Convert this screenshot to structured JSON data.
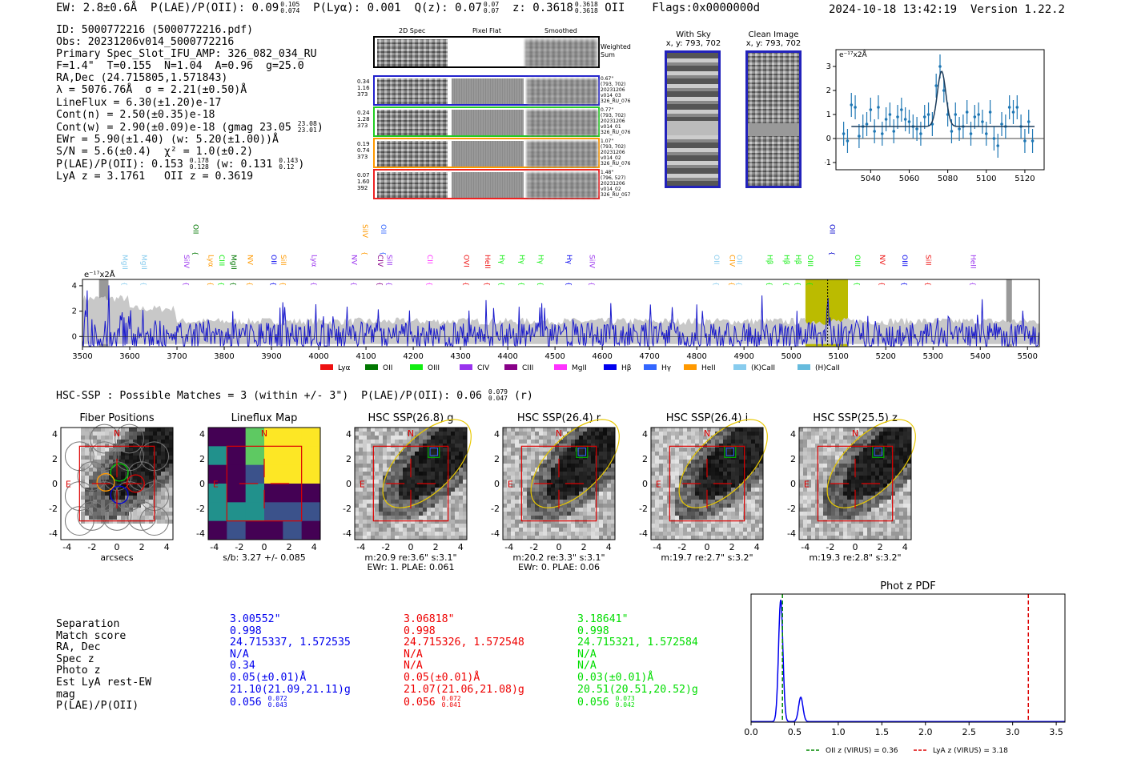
{
  "header": {
    "ew": "EW: 2.8±0.6Å",
    "plae_label": "P(LAE)/P(OII):",
    "plae_val": "0.09",
    "plae_sup": "0.105",
    "plae_sub": "0.074",
    "plya": "P(Lyα): 0.001",
    "qz_label": "Q(z): 0.07",
    "qz_sup": "0.07",
    "qz_sub": "0.07",
    "z_label": "z: 0.3618",
    "z_sup": "0.3618",
    "z_sub": "0.3618",
    "z_line": "OII",
    "flags": "Flags:0x0000000d",
    "datetime": "2024-10-18 13:42:19",
    "version": "Version 1.22.2"
  },
  "info": {
    "id": "ID: 5000772216 (5000772216.pdf)",
    "obs": "Obs: 20231206v014_5000772216",
    "primary": "Primary Spec_Slot_IFU_AMP: 326_082_034_RU",
    "params": "F=1.4\"  T=0.155  N=1.04  A=0.96  g=25.0",
    "radec": "RA,Dec (24.715805,1.571843)",
    "lambda": "λ = 5076.76Å  σ = 2.21(±0.50)Å",
    "lineflux": "LineFlux = 6.30(±1.20)e-17",
    "contn": "Cont(n) = 2.50(±0.35)e-18",
    "contw": "Cont(w) = 2.90(±0.09)e-18 (gmag 23.05",
    "contw_sup": "23.08",
    "contw_sub": "23.01",
    "contw_close": ")",
    "ewr": "EWr = 5.90(±1.40) (w: 5.20(±1.00))Å",
    "sn": "S/N = 5.6(±0.4)  χ² = 1.0(±0.2)",
    "plae": "P(LAE)/P(OII): 0.153",
    "plae_sup": "0.178",
    "plae_sub": "0.128",
    "plae_w": "(w: 0.131",
    "plae_w_sup": "0.143",
    "plae_w_sub": "0.12",
    "plae_w_close": ")",
    "lyaz": "LyA z = 3.1761   OII z = 0.3619"
  },
  "cutouts": {
    "col_2d": "2D Spec",
    "col_flat": "Pixel Flat",
    "col_smooth": "Smoothed",
    "weighted_sum": "Weighted Sum",
    "rows": [
      {
        "a": "0.34",
        "b": "1.16",
        "c": "373",
        "s1": "0.67\"",
        "s2": "(793, 702)",
        "s3": "20231206",
        "s4": "v014_03",
        "s5": "326_RU_076",
        "color": "#2222cc"
      },
      {
        "a": "0.24",
        "b": "1.28",
        "c": "373",
        "s1": "0.77\"",
        "s2": "(793, 702)",
        "s3": "20231206",
        "s4": "v014_01",
        "s5": "326_RU_076",
        "color": "#22cc22"
      },
      {
        "a": "0.19",
        "b": "0.74",
        "c": "373",
        "s1": "1.07\"",
        "s2": "(793, 702)",
        "s3": "20231206",
        "s4": "v014_02",
        "s5": "326_RU_076",
        "color": "#ff9900"
      },
      {
        "a": "0.07",
        "b": "1.60",
        "c": "392",
        "s1": "1.48\"",
        "s2": "(796, 527)",
        "s3": "20231206",
        "s4": "v014_02",
        "s5": "326_RU_057",
        "color": "#ee2222"
      }
    ],
    "with_sky_title": "With Sky",
    "with_sky_xy": "x, y: 793, 702",
    "clean_title": "Clean Image",
    "clean_xy": "x, y: 793, 702"
  },
  "zoom_plot": {
    "units": "e⁻¹⁷x2Å"
  },
  "spectrum": {
    "units": "e⁻¹⁷x2Å",
    "legend_colors": [
      "#ee1111",
      "#007700",
      "#11ee11",
      "#9933ee",
      "#880088",
      "#ff33ff",
      "#0000ee",
      "#3366ff",
      "#ff9900",
      "#88ccee",
      "#66bbdd"
    ]
  },
  "hsc": {
    "title": "HSC-SSP : Possible Matches = 3 (within +/- 3\")  P(LAE)/P(OII): 0.06",
    "title_sup": "0.079",
    "title_sub": "0.047",
    "title_tail": "(r)",
    "xlabel": "arcsecs",
    "sb": "s/b: 3.27 +/- 0.085",
    "N": "N",
    "E": "E"
  },
  "matches": {
    "labels": [
      "Separation",
      "Match score",
      "RA, Dec",
      "Spec z",
      "Photo z",
      "Est LyA rest-EW",
      "mag",
      "P(LAE)/P(OII)"
    ],
    "cols": [
      {
        "color": "#0000ee",
        "sep": "3.00552\"",
        "score": "0.998",
        "radec": "24.715337, 1.572535",
        "specz": "N/A",
        "photoz": "0.34",
        "ew": "0.05(±0.01)Å",
        "mag": "21.10(21.09,21.11)g",
        "plae": "0.056",
        "plae_sup": "0.072",
        "plae_sub": "0.043"
      },
      {
        "color": "#ee0000",
        "sep": "3.06818\"",
        "score": "0.998",
        "radec": "24.715326, 1.572548",
        "specz": "N/A",
        "photoz": "N/A",
        "ew": "0.05(±0.01)Å",
        "mag": "21.07(21.06,21.08)g",
        "plae": "0.056",
        "plae_sup": "0.072",
        "plae_sub": "0.041"
      },
      {
        "color": "#00dd00",
        "sep": "3.18641\"",
        "score": "0.998",
        "radec": "24.715321, 1.572584",
        "specz": "N/A",
        "photoz": "N/A",
        "ew": "0.03(±0.01)Å",
        "mag": "20.51(20.51,20.52)g",
        "plae": "0.056",
        "plae_sup": "0.073",
        "plae_sub": "0.042"
      }
    ]
  },
  "chart_data": [
    {
      "type": "line",
      "title": "",
      "ylabel": "e⁻¹⁷x2Å",
      "xlabel": "",
      "xlim": [
        3500,
        5525
      ],
      "ylim": [
        -0.8,
        4.5
      ],
      "x_ticks": [
        3500,
        3600,
        3700,
        3800,
        3900,
        4000,
        4100,
        4200,
        4300,
        4400,
        4500,
        4600,
        4700,
        4800,
        4900,
        5000,
        5100,
        5200,
        5300,
        5400,
        5500
      ],
      "y_ticks": [
        0,
        2,
        4
      ],
      "highlight_range": [
        5030,
        5120
      ],
      "marker_x": 5077,
      "lines_top": [
        {
          "label": "OII",
          "x": 3730,
          "color": "#007700"
        },
        {
          "label": "SiIV",
          "x": 4088,
          "color": "#ff9900"
        },
        {
          "label": "OII",
          "x": 4127,
          "color": "#3366ff"
        },
        {
          "label": "OII",
          "x": 5077,
          "color": "#0000cc"
        }
      ],
      "lines_mid": [
        {
          "label": "MgII",
          "x": 3580,
          "color": "#88ccee"
        },
        {
          "label": "MgII",
          "x": 3620,
          "color": "#88ccee"
        },
        {
          "label": "SiIV",
          "x": 3710,
          "color": "#9933ee"
        },
        {
          "label": "Lyα",
          "x": 3762,
          "color": "#ff9900"
        },
        {
          "label": "CIII",
          "x": 3785,
          "color": "#11ee11"
        },
        {
          "label": "MgII",
          "x": 3810,
          "color": "#007700"
        },
        {
          "label": "NV",
          "x": 3845,
          "color": "#ff9900"
        },
        {
          "label": "OII",
          "x": 3895,
          "color": "#0000ee"
        },
        {
          "label": "SiII",
          "x": 3915,
          "color": "#ff9900"
        },
        {
          "label": "Lyα",
          "x": 3980,
          "color": "#9933ee"
        },
        {
          "label": "NV",
          "x": 4065,
          "color": "#9933ee"
        },
        {
          "label": "CIV",
          "x": 4120,
          "color": "#880088"
        },
        {
          "label": "SiII",
          "x": 4140,
          "color": "#9933ee"
        },
        {
          "label": "CII",
          "x": 4225,
          "color": "#ff33ff"
        },
        {
          "label": "OVI",
          "x": 4302,
          "color": "#ee1111"
        },
        {
          "label": "HeII",
          "x": 4347,
          "color": "#ee1111"
        },
        {
          "label": "Hγ",
          "x": 4378,
          "color": "#11ee11"
        },
        {
          "label": "Hγ",
          "x": 4420,
          "color": "#11ee11"
        },
        {
          "label": "Hγ",
          "x": 4460,
          "color": "#11ee11"
        },
        {
          "label": "Hγ",
          "x": 4520,
          "color": "#0000ee"
        },
        {
          "label": "SiIV",
          "x": 4568,
          "color": "#9933ee"
        },
        {
          "label": "OII",
          "x": 4832,
          "color": "#88ccee"
        },
        {
          "label": "CIV",
          "x": 4865,
          "color": "#ff9900"
        },
        {
          "label": "OII",
          "x": 4880,
          "color": "#88ccee"
        },
        {
          "label": "Hβ",
          "x": 4945,
          "color": "#11ee11"
        },
        {
          "label": "Hβ",
          "x": 4980,
          "color": "#11ee11"
        },
        {
          "label": "Hβ",
          "x": 5005,
          "color": "#11ee11"
        },
        {
          "label": "OIII",
          "x": 5030,
          "color": "#11ee11"
        },
        {
          "label": "OIII",
          "x": 5130,
          "color": "#11ee11"
        },
        {
          "label": "NV",
          "x": 5183,
          "color": "#ee1111"
        },
        {
          "label": "OIII",
          "x": 5230,
          "color": "#0000ee"
        },
        {
          "label": "SiII",
          "x": 5280,
          "color": "#ee1111"
        },
        {
          "label": "HeII",
          "x": 5375,
          "color": "#9933ee"
        }
      ],
      "legend": [
        "Lyα",
        "OII",
        "OIII",
        "CIV",
        "CIII",
        "MgII",
        "Hβ",
        "Hγ",
        "HeII",
        "(K)CaII",
        "(H)CaII"
      ]
    },
    {
      "type": "line",
      "title": "",
      "ylabel": "e⁻¹⁷x2Å",
      "xlim": [
        5022,
        5130
      ],
      "ylim": [
        -1.3,
        3.7
      ],
      "x_ticks": [
        5040,
        5060,
        5080,
        5100,
        5120
      ],
      "y_ticks": [
        -1,
        0,
        1,
        2,
        3
      ],
      "fit": {
        "center": 5076.8,
        "sigma": 2.21,
        "amp": 2.3,
        "baseline": 0.5
      },
      "points_x": [
        5026,
        5028,
        5030,
        5032,
        5034,
        5036,
        5038,
        5040,
        5042,
        5044,
        5046,
        5048,
        5050,
        5052,
        5054,
        5056,
        5058,
        5060,
        5062,
        5064,
        5066,
        5068,
        5070,
        5072,
        5074,
        5076,
        5078,
        5080,
        5082,
        5084,
        5086,
        5088,
        5090,
        5092,
        5094,
        5096,
        5098,
        5100,
        5102,
        5104,
        5106,
        5108,
        5110,
        5112,
        5114,
        5116,
        5118,
        5120,
        5122,
        5124
      ],
      "points_y": [
        0.2,
        -0.1,
        1.4,
        1.3,
        0.1,
        0.5,
        0.6,
        1.2,
        0.3,
        1.3,
        0.2,
        0.8,
        1.0,
        0.3,
        0.9,
        1.2,
        0.8,
        0.7,
        0.5,
        0.4,
        0.2,
        0.9,
        1.0,
        0.6,
        2.2,
        3.0,
        2.0,
        1.0,
        0.3,
        1.0,
        0.4,
        0.5,
        1.1,
        0.2,
        0.9,
        1.0,
        0.7,
        0.2,
        1.1,
        0.0,
        -0.3,
        0.6,
        0.5,
        1.3,
        1.1,
        1.3,
        0.5,
        -0.1,
        0.7,
        -0.1
      ],
      "points_err": 0.5
    },
    {
      "type": "line",
      "title": "Phot z PDF",
      "xlim": [
        0,
        3.6
      ],
      "x_ticks": [
        0.0,
        0.5,
        1.0,
        1.5,
        2.0,
        2.5,
        3.0,
        3.5
      ],
      "x_tick_labels": [
        "0.0",
        "0.5",
        "1.0",
        "1.5",
        "2.0",
        "2.5",
        "3.0",
        "3.5"
      ],
      "series": [
        {
          "name": "Phot z PDF",
          "color": "#0000ee"
        }
      ],
      "peaks": [
        {
          "z": 0.34,
          "height": 1.0,
          "width": 0.025
        },
        {
          "z": 0.57,
          "height": 0.2,
          "width": 0.025
        }
      ],
      "vlines": [
        {
          "name": "OII z (VIRUS) = 0.36",
          "x": 0.36,
          "color": "#008800"
        },
        {
          "name": "LyA z (VIRUS) = 3.18",
          "x": 3.18,
          "color": "#dd0000"
        }
      ]
    },
    {
      "type": "heatmap",
      "panels": [
        {
          "title": "Fiber Positions",
          "foot": "arcsecs"
        },
        {
          "title": "Lineflux Map",
          "foot": "s/b: 3.27 +/- 0.085"
        },
        {
          "title": "HSC SSP(26.8) g",
          "foot1": "m:20.9  re:3.6\"  s:3.1\"",
          "foot2": "EWr: 1. PLAE: 0.061"
        },
        {
          "title": "HSC SSP(26.4) r",
          "foot1": "m:20.2  re:3.3\"  s:3.1\"",
          "foot2": "EWr: 0. PLAE: 0.06"
        },
        {
          "title": "HSC SSP(26.4) i",
          "foot1": "m:19.7  re:2.7\"  s:3.2\"",
          "foot2": ""
        },
        {
          "title": "HSC SSP(25.5) z",
          "foot1": "m:19.3  re:2.8\"  s:3.2\"",
          "foot2": ""
        }
      ],
      "axis_ticks": [
        -4,
        -2,
        0,
        2,
        4
      ]
    }
  ]
}
